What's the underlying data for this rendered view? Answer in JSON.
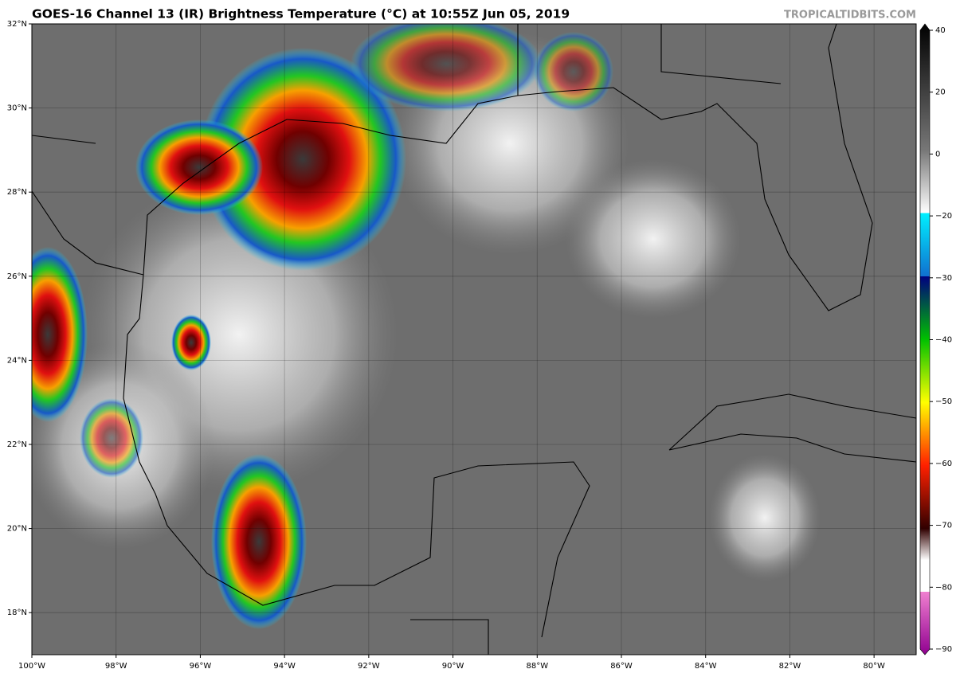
{
  "header": {
    "title": "GOES-16 Channel 13 (IR) Brightness Temperature (°C) at 10:55Z Jun 05, 2019",
    "watermark": "TROPICALTIDBITS.COM"
  },
  "map": {
    "xlim": [
      -100,
      -79
    ],
    "ylim": [
      17,
      32
    ],
    "lon_ticks": [
      {
        "value": -100,
        "label": "100°W"
      },
      {
        "value": -98,
        "label": "98°W"
      },
      {
        "value": -96,
        "label": "96°W"
      },
      {
        "value": -94,
        "label": "94°W"
      },
      {
        "value": -92,
        "label": "92°W"
      },
      {
        "value": -90,
        "label": "90°W"
      },
      {
        "value": -88,
        "label": "88°W"
      },
      {
        "value": -86,
        "label": "86°W"
      },
      {
        "value": -84,
        "label": "84°W"
      },
      {
        "value": -82,
        "label": "82°W"
      },
      {
        "value": -80,
        "label": "80°W"
      }
    ],
    "lat_ticks": [
      {
        "value": 18,
        "label": "18°N"
      },
      {
        "value": 20,
        "label": "20°N"
      },
      {
        "value": 22,
        "label": "22°N"
      },
      {
        "value": 24,
        "label": "24°N"
      },
      {
        "value": 26,
        "label": "26°N"
      },
      {
        "value": 28,
        "label": "28°N"
      },
      {
        "value": 30,
        "label": "30°N"
      },
      {
        "value": 32,
        "label": "32°N"
      }
    ]
  },
  "colorbar": {
    "ticks": [
      40,
      20,
      0,
      {
        "value": -20,
        "label": "−20"
      },
      {
        "value": -30,
        "label": "−30"
      },
      {
        "value": -40,
        "label": "−40"
      },
      {
        "value": -50,
        "label": "−50"
      },
      {
        "value": -60,
        "label": "−60"
      },
      {
        "value": -70,
        "label": "−70"
      },
      {
        "value": -80,
        "label": "−80"
      },
      {
        "value": -90,
        "label": "−90"
      }
    ]
  }
}
